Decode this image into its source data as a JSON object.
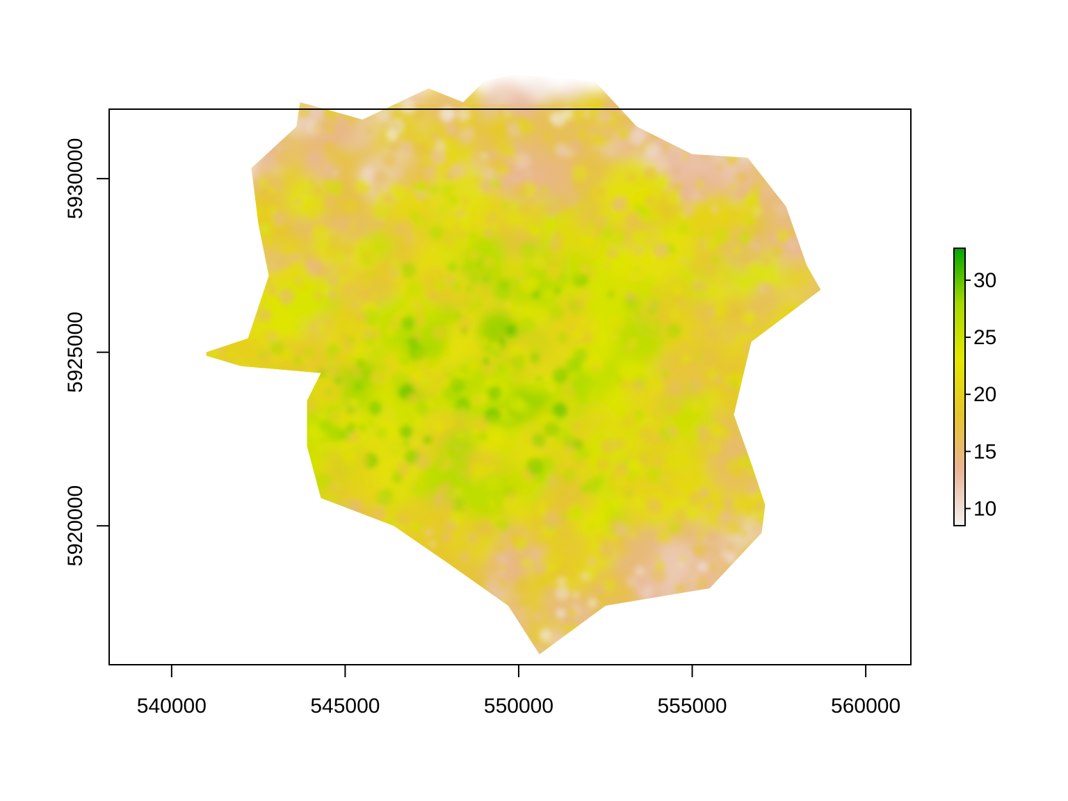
{
  "chart_data": {
    "type": "heatmap",
    "title": "",
    "xlabel": "",
    "ylabel": "",
    "xlim": [
      538200,
      561300
    ],
    "ylim": [
      5916000,
      5932000
    ],
    "x_ticks": [
      540000,
      545000,
      550000,
      555000,
      560000
    ],
    "y_ticks": [
      5920000,
      5925000,
      5930000
    ],
    "x_tick_labels": [
      "540000",
      "545000",
      "550000",
      "555000",
      "560000"
    ],
    "y_tick_labels": [
      "5920000",
      "5925000",
      "5930000"
    ],
    "grid": false,
    "legend": {
      "placement": "right",
      "range": [
        8.5,
        32.8
      ],
      "ticks": [
        10,
        15,
        20,
        25,
        30
      ],
      "tick_labels": [
        "10",
        "15",
        "20",
        "25",
        "30"
      ],
      "colors": [
        "#f2f2f2",
        "#e8b595",
        "#e6c52c",
        "#e4e700",
        "#a7d900",
        "#00a600"
      ]
    },
    "extent_outline": [
      [
        541000,
        5925000
      ],
      [
        542200,
        5925400
      ],
      [
        542800,
        5927200
      ],
      [
        542500,
        5928700
      ],
      [
        542300,
        5930300
      ],
      [
        543600,
        5931500
      ],
      [
        543700,
        5932200
      ],
      [
        545500,
        5931700
      ],
      [
        547400,
        5932600
      ],
      [
        548400,
        5932200
      ],
      [
        549000,
        5932800
      ],
      [
        549900,
        5933000
      ],
      [
        552200,
        5932800
      ],
      [
        553400,
        5931500
      ],
      [
        555000,
        5930700
      ],
      [
        556600,
        5930600
      ],
      [
        557700,
        5929200
      ],
      [
        558300,
        5927500
      ],
      [
        558700,
        5926800
      ],
      [
        556700,
        5925300
      ],
      [
        556200,
        5923200
      ],
      [
        556700,
        5921800
      ],
      [
        557100,
        5920600
      ],
      [
        557000,
        5919800
      ],
      [
        555500,
        5918200
      ],
      [
        552500,
        5917700
      ],
      [
        550600,
        5916300
      ],
      [
        549700,
        5917700
      ],
      [
        548000,
        5918900
      ],
      [
        546400,
        5920000
      ],
      [
        544300,
        5920800
      ],
      [
        543900,
        5922300
      ],
      [
        543900,
        5923600
      ],
      [
        544300,
        5924400
      ],
      [
        542000,
        5924600
      ],
      [
        541000,
        5924900
      ]
    ]
  }
}
